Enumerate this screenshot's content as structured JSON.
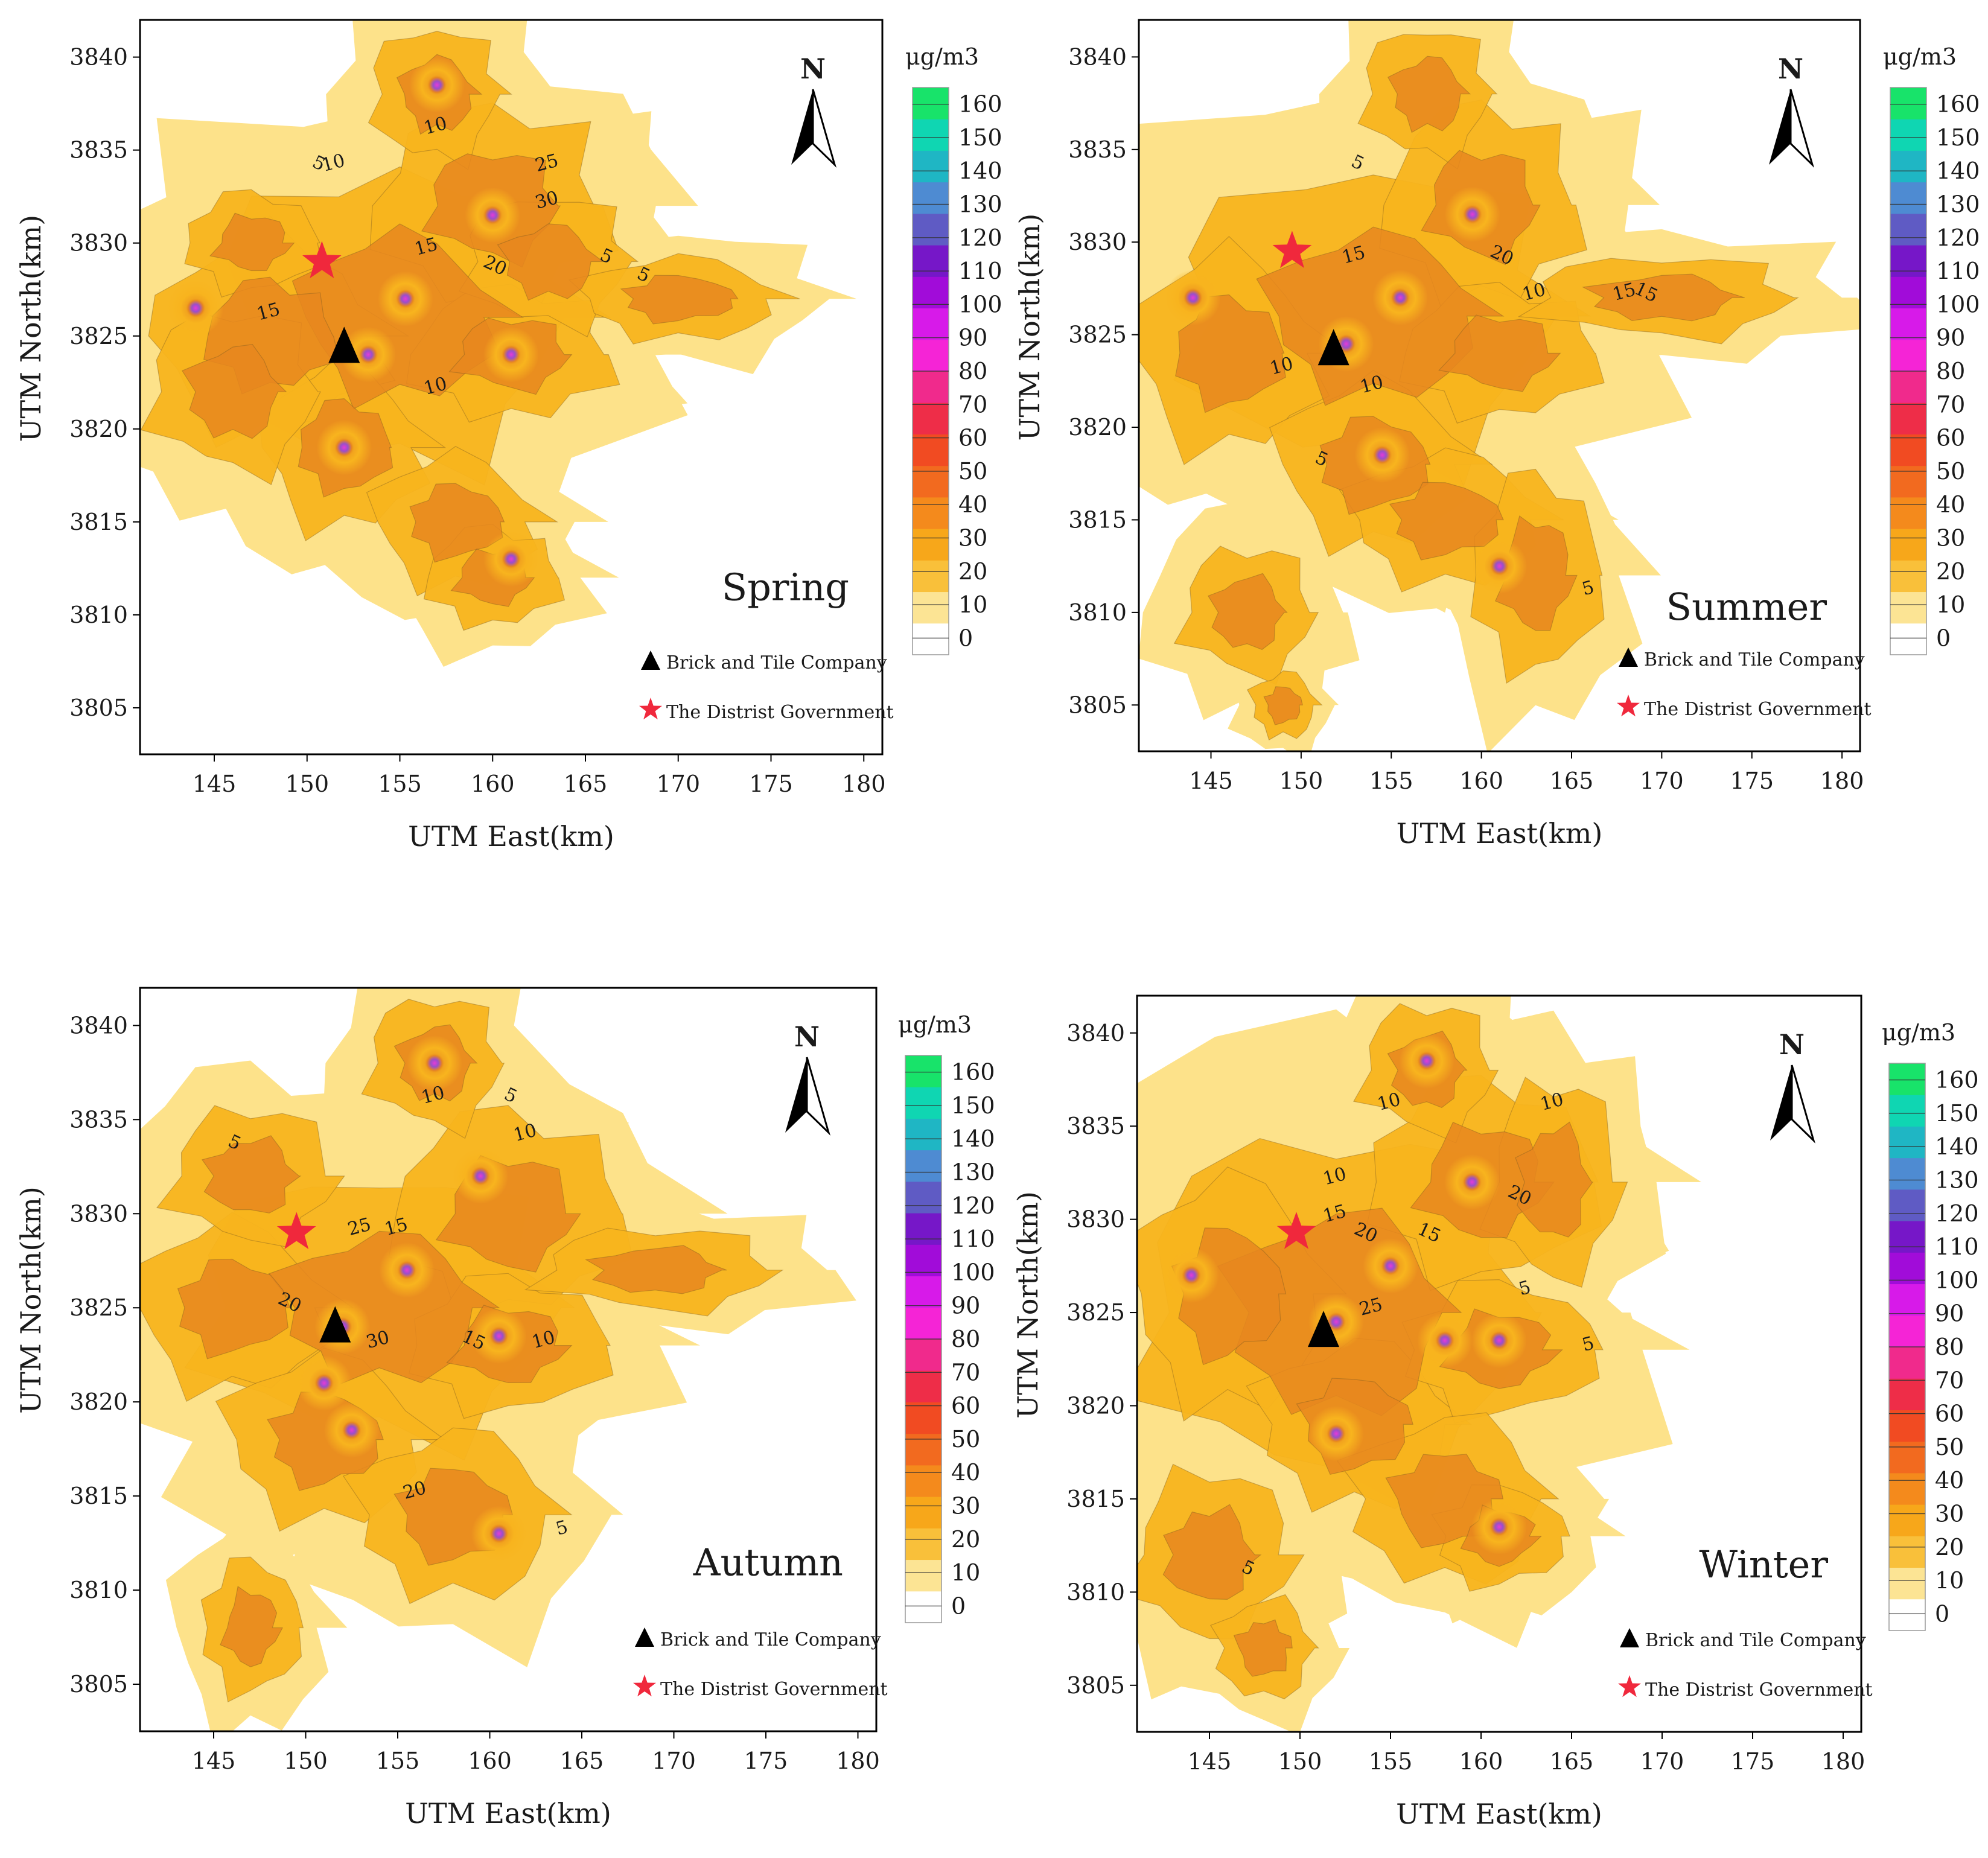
{
  "figure": {
    "panels": [
      {
        "season": "Spring",
        "xlabel": "UTM East(km)",
        "ylabel": "UTM North(km)",
        "xticks": [
          "145",
          "150",
          "155",
          "160",
          "165",
          "170",
          "175",
          "180"
        ],
        "yticks": [
          "3805",
          "3810",
          "3815",
          "3820",
          "3825",
          "3830",
          "3835",
          "3840"
        ],
        "unit": "μg/m3",
        "north": "N",
        "colorbar_ticks": [
          "0",
          "10",
          "20",
          "30",
          "40",
          "50",
          "60",
          "70",
          "80",
          "90",
          "100",
          "110",
          "120",
          "130",
          "140",
          "150",
          "160"
        ],
        "legend": {
          "company": "Brick and Tile Company",
          "government": "The Distrist Government"
        },
        "contour_labels": [
          "5",
          "10",
          "15",
          "20",
          "25",
          "30",
          "5",
          "10",
          "15",
          "5",
          "10"
        ]
      },
      {
        "season": "Summer",
        "xlabel": "UTM East(km)",
        "ylabel": "UTM North(km)",
        "xticks": [
          "145",
          "150",
          "155",
          "160",
          "165",
          "170",
          "175",
          "180"
        ],
        "yticks": [
          "3805",
          "3810",
          "3815",
          "3820",
          "3825",
          "3830",
          "3835",
          "3840"
        ],
        "unit": "μg/m3",
        "north": "N",
        "colorbar_ticks": [
          "0",
          "10",
          "20",
          "30",
          "40",
          "50",
          "60",
          "70",
          "80",
          "90",
          "100",
          "110",
          "120",
          "130",
          "140",
          "150",
          "160"
        ],
        "legend": {
          "company": "Brick and Tile Company",
          "government": "The Distrist Government"
        },
        "contour_labels": [
          "5",
          "10",
          "15",
          "20",
          "10",
          "15",
          "5",
          "10",
          "5",
          "15"
        ]
      },
      {
        "season": "Autumn",
        "xlabel": "UTM East(km)",
        "ylabel": "UTM North(km)",
        "xticks": [
          "145",
          "150",
          "155",
          "160",
          "165",
          "170",
          "175",
          "180"
        ],
        "yticks": [
          "3805",
          "3810",
          "3815",
          "3820",
          "3825",
          "3830",
          "3835",
          "3840"
        ],
        "unit": "μg/m3",
        "north": "N",
        "colorbar_ticks": [
          "0",
          "10",
          "20",
          "30",
          "40",
          "50",
          "60",
          "70",
          "80",
          "90",
          "100",
          "110",
          "120",
          "130",
          "140",
          "150",
          "160"
        ],
        "legend": {
          "company": "Brick and Tile Company",
          "government": "The Distrist Government"
        },
        "contour_labels": [
          "5",
          "10",
          "15",
          "20",
          "25",
          "30",
          "5",
          "10",
          "20",
          "15",
          "10",
          "5"
        ]
      },
      {
        "season": "Winter",
        "xlabel": "UTM East(km)",
        "ylabel": "UTM North(km)",
        "xticks": [
          "145",
          "150",
          "155",
          "160",
          "165",
          "170",
          "175",
          "180"
        ],
        "yticks": [
          "3805",
          "3810",
          "3815",
          "3820",
          "3825",
          "3830",
          "3835",
          "3840"
        ],
        "unit": "μg/m3",
        "north": "N",
        "colorbar_ticks": [
          "0",
          "10",
          "20",
          "30",
          "40",
          "50",
          "60",
          "70",
          "80",
          "90",
          "100",
          "110",
          "120",
          "130",
          "140",
          "150",
          "160"
        ],
        "legend": {
          "company": "Brick and Tile Company",
          "government": "The Distrist Government"
        },
        "contour_labels": [
          "5",
          "10",
          "15",
          "20",
          "25",
          "10",
          "15",
          "5",
          "10",
          "20",
          "5"
        ]
      }
    ],
    "colors": {
      "low": "#FDE28A",
      "mid": "#F8B41E",
      "high": "#E7871F",
      "hotspot": "#9A4FC9",
      "peak": "#E63AD8",
      "marker_star": "#F0283C",
      "marker_triangle": "#000000",
      "colorbar": [
        "#FFFFFF",
        "#FCE494",
        "#F9C03A",
        "#F7A71A",
        "#F48A1C",
        "#F26A1F",
        "#F14B22",
        "#EE2D48",
        "#F02A8C",
        "#F524D6",
        "#D71AE9",
        "#A10CD9",
        "#7617C8",
        "#5F5BC4",
        "#4E8BD2",
        "#1FB6C4",
        "#0FD6B2",
        "#18E36A"
      ]
    }
  }
}
